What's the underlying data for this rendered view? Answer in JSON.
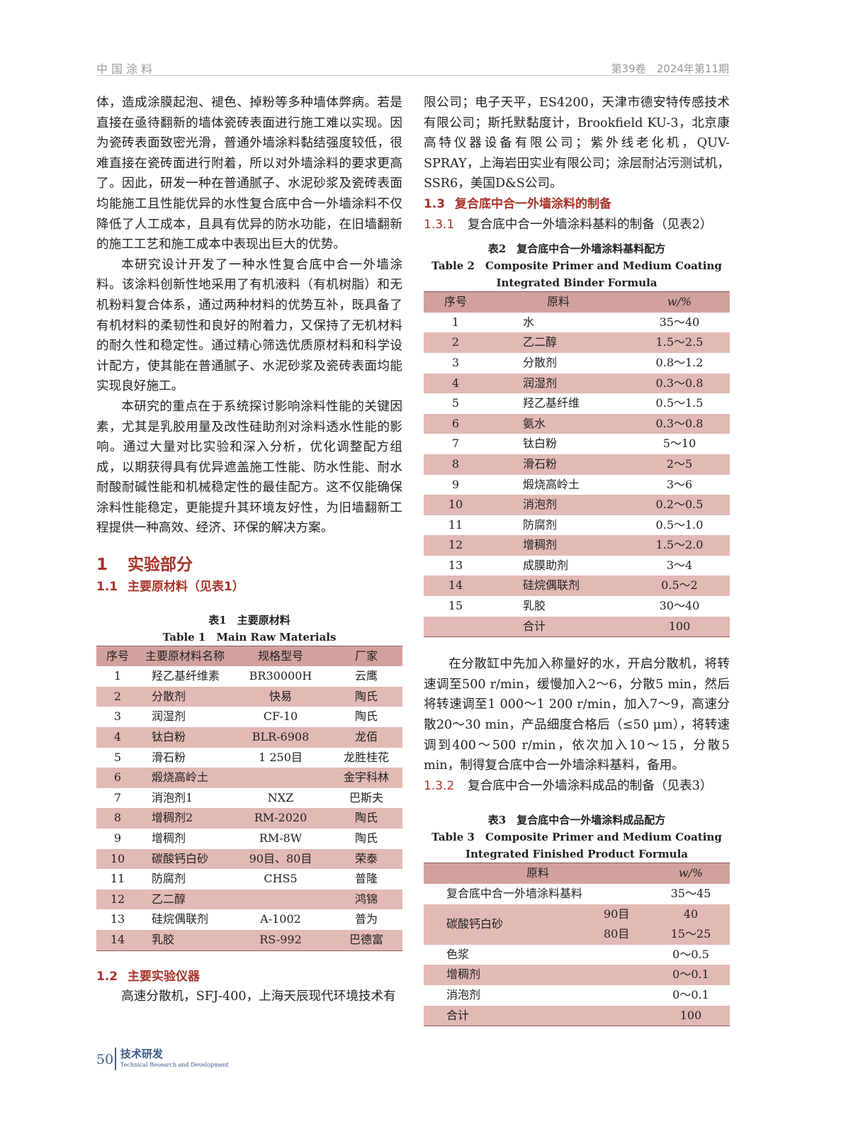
{
  "header": {
    "journal": "中国涂料",
    "issue": "第39卷　2024年第11期"
  },
  "left": {
    "p1": "体，造成涂膜起泡、褪色、掉粉等多种墙体弊病。若是直接在亟待翻新的墙体瓷砖表面进行施工难以实现。因为瓷砖表面致密光滑，普通外墙涂料黏结强度较低，很难直接在瓷砖面进行附着，所以对外墙涂料的要求更高了。因此，研发一种在普通腻子、水泥砂浆及瓷砖表面均能施工且性能优异的水性复合底中合一外墙涂料不仅降低了人工成本，且具有优异的防水功能，在旧墙翻新的施工工艺和施工成本中表现出巨大的优势。",
    "p2": "本研究设计开发了一种水性复合底中合一外墙涂料。该涂料创新性地采用了有机液料（有机树脂）和无机粉料复合体系，通过两种材料的优势互补，既具备了有机材料的柔韧性和良好的附着力，又保持了无机材料的耐久性和稳定性。通过精心筛选优质原材料和科学设计配方，使其能在普通腻子、水泥砂浆及瓷砖表面均能实现良好施工。",
    "p3": "本研究的重点在于系统探讨影响涂料性能的关键因素，尤其是乳胶用量及改性硅助剂对涂料透水性能的影响。通过大量对比实验和深入分析，优化调整配方组成，以期获得具有优异遮盖施工性能、防水性能、耐水耐酸耐碱性能和机械稳定性的最佳配方。这不仅能确保涂料性能稳定，更能提升其环境友好性，为旧墙翻新工程提供一种高效、经济、环保的解决方案。",
    "s1_num": "1",
    "s1_title": "实验部分",
    "s11_num": "1.1",
    "s11_title": "主要原材料（见表1）",
    "s12_num": "1.2",
    "s12_title": "主要实验仪器",
    "p4": "高速分散机，SFJ-400，上海天辰现代环境技术有"
  },
  "table1": {
    "caption_cn": "表1　主要原材料",
    "caption_en": "Table 1　Main Raw Materials",
    "headers": [
      "序号",
      "主要原材料名称",
      "规格型号",
      "厂家"
    ],
    "rows": [
      [
        "1",
        "羟乙基纤维素",
        "BR30000H",
        "云鹰"
      ],
      [
        "2",
        "分散剂",
        "快易",
        "陶氏"
      ],
      [
        "3",
        "润湿剂",
        "CF-10",
        "陶氏"
      ],
      [
        "4",
        "钛白粉",
        "BLR-6908",
        "龙佰"
      ],
      [
        "5",
        "滑石粉",
        "1 250目",
        "龙胜桂花"
      ],
      [
        "6",
        "煅烧高岭土",
        "",
        "金宇科林"
      ],
      [
        "7",
        "消泡剂1",
        "NXZ",
        "巴斯夫"
      ],
      [
        "8",
        "增稠剂2",
        "RM-2020",
        "陶氏"
      ],
      [
        "9",
        "增稠剂",
        "RM-8W",
        "陶氏"
      ],
      [
        "10",
        "碳酸钙白砂",
        "90目、80目",
        "荣泰"
      ],
      [
        "11",
        "防腐剂",
        "CHS5",
        "普隆"
      ],
      [
        "12",
        "乙二醇",
        "",
        "鸿锦"
      ],
      [
        "13",
        "硅烷偶联剂",
        "A-1002",
        "普为"
      ],
      [
        "14",
        "乳胶",
        "RS-992",
        "巴德富"
      ]
    ]
  },
  "right": {
    "p1": "限公司；电子天平，ES4200，天津市德安特传感技术有限公司；斯托默黏度计，Brookfield KU-3，北京康高特仪器设备有限公司；紫外线老化机，QUV-SPRAY，上海岩田实业有限公司；涂层耐沾污测试机，SSR6，美国D&S公司。",
    "s13_num": "1.3",
    "s13_title": "复合底中合一外墙涂料的制备",
    "s131_num": "1.3.1",
    "s131_title": "复合底中合一外墙涂料基料的制备（见表2）",
    "p2": "在分散缸中先加入称量好的水，开启分散机，将转速调至500 r/min，缓慢加入2～6，分散5 min，然后将转速调至1 000～1 200 r/min，加入7～9，高速分散20～30 min，产品细度合格后（≤50 μm），将转速调到400～500 r/min，依次加入10～15，分散5 min，制得复合底中合一外墙涂料基料，备用。",
    "s132_num": "1.3.2",
    "s132_title": "复合底中合一外墙涂料成品的制备（见表3）"
  },
  "table2": {
    "caption_cn": "表2　复合底中合一外墙涂料基料配方",
    "caption_en1": "Table 2　Composite Primer and Medium Coating",
    "caption_en2": "Integrated Binder Formula",
    "headers": [
      "序号",
      "原料",
      "w/%"
    ],
    "rows": [
      [
        "1",
        "水",
        "35～40"
      ],
      [
        "2",
        "乙二醇",
        "1.5～2.5"
      ],
      [
        "3",
        "分散剂",
        "0.8～1.2"
      ],
      [
        "4",
        "润湿剂",
        "0.3～0.8"
      ],
      [
        "5",
        "羟乙基纤维",
        "0.5～1.5"
      ],
      [
        "6",
        "氨水",
        "0.3～0.8"
      ],
      [
        "7",
        "钛白粉",
        "5～10"
      ],
      [
        "8",
        "滑石粉",
        "2～5"
      ],
      [
        "9",
        "煅烧高岭土",
        "3～6"
      ],
      [
        "10",
        "消泡剂",
        "0.2～0.5"
      ],
      [
        "11",
        "防腐剂",
        "0.5～1.0"
      ],
      [
        "12",
        "增稠剂",
        "1.5～2.0"
      ],
      [
        "13",
        "成膜助剂",
        "3～4"
      ],
      [
        "14",
        "硅烷偶联剂",
        "0.5～2"
      ],
      [
        "15",
        "乳胶",
        "30～40"
      ],
      [
        "",
        "合计",
        "100"
      ]
    ]
  },
  "table3": {
    "caption_cn": "表3　复合底中合一外墙涂料成品配方",
    "caption_en1": "Table 3　Composite Primer and Medium Coating",
    "caption_en2": "Integrated Finished Product Formula",
    "headers": [
      "原料",
      "w/%"
    ],
    "base": [
      "复合底中合一外墙涂料基料",
      "35～45"
    ],
    "caco3": {
      "name": "碳酸钙白砂",
      "sub": [
        [
          "90目",
          "40"
        ],
        [
          "80目",
          "15～25"
        ]
      ]
    },
    "rows": [
      [
        "色浆",
        "0～0.5"
      ],
      [
        "增稠剂",
        "0～0.1"
      ],
      [
        "消泡剂",
        "0～0.1"
      ],
      [
        "合计",
        "100"
      ]
    ]
  },
  "footer": {
    "page": "50",
    "section_cn": "技术研发",
    "section_en": "Technical Research and Development"
  },
  "colors": {
    "heading": "#a8332a",
    "table_header": "#d3a19d",
    "table_stripe": "#e2b9b5",
    "footer": "#3d5b8a"
  }
}
